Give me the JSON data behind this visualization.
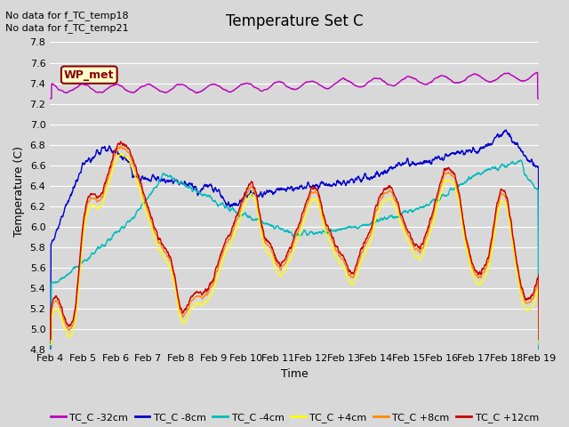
{
  "title": "Temperature Set C",
  "xlabel": "Time",
  "ylabel": "Temperature (C)",
  "ylim": [
    4.8,
    7.9
  ],
  "annotation_lines": [
    "No data for f_TC_temp18",
    "No data for f_TC_temp21"
  ],
  "wp_met_label": "WP_met",
  "wp_met_box_color": "#ffffcc",
  "wp_met_border_color": "#880000",
  "wp_met_text_color": "#880000",
  "bg_color": "#d8d8d8",
  "plot_bg_color": "#d8d8d8",
  "grid_color": "#ffffff",
  "tick_labels": [
    "Feb 4",
    "Feb 5",
    "Feb 6",
    "Feb 7",
    "Feb 8",
    "Feb 9",
    "Feb 10",
    "Feb 11",
    "Feb 12",
    "Feb 13",
    "Feb 14",
    "Feb 15",
    "Feb 16",
    "Feb 17",
    "Feb 18",
    "Feb 19"
  ],
  "legend_entries": [
    "TC_C -32cm",
    "TC_C -8cm",
    "TC_C -4cm",
    "TC_C +4cm",
    "TC_C +8cm",
    "TC_C +12cm"
  ],
  "line_colors": [
    "#bb00bb",
    "#0000cc",
    "#00bbbb",
    "#ffff00",
    "#ff8800",
    "#cc0000"
  ],
  "font_name": "DejaVu Sans",
  "title_fontsize": 12,
  "axis_fontsize": 9,
  "tick_fontsize": 8,
  "legend_fontsize": 8
}
